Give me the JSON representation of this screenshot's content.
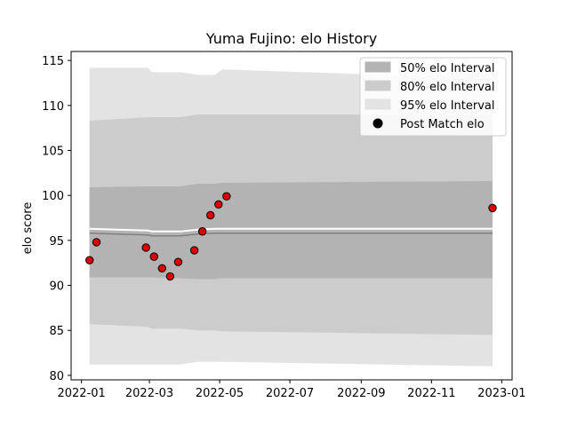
{
  "chart_data": {
    "type": "line",
    "title": "Yuma Fujino: elo History",
    "xlabel": "",
    "ylabel": "elo score",
    "xlim": [
      "2021-12-23",
      "2023-01-10"
    ],
    "ylim": [
      79.5,
      116
    ],
    "x_ticks": [
      "2022-01",
      "2022-03",
      "2022-05",
      "2022-07",
      "2022-09",
      "2022-11",
      "2023-01"
    ],
    "y_ticks": [
      80,
      85,
      90,
      95,
      100,
      105,
      110,
      115
    ],
    "grid": false,
    "legend_position": "upper right",
    "legend": [
      {
        "label": "50% elo Interval",
        "color": "#b3b3b3"
      },
      {
        "label": "80% elo Interval",
        "color": "#cccccc"
      },
      {
        "label": "95% elo Interval",
        "color": "#e3e3e3"
      },
      {
        "label": "Post Match elo",
        "color": "#000000"
      }
    ],
    "bands": {
      "dates": [
        "2022-01-08",
        "2022-02-28",
        "2022-03-03",
        "2022-03-28",
        "2022-04-12",
        "2022-04-27",
        "2022-05-03",
        "2022-12-24"
      ],
      "mean": [
        95.8,
        95.6,
        95.5,
        95.5,
        95.7,
        95.8,
        95.8,
        95.8
      ],
      "p50_low": [
        90.9,
        90.9,
        90.9,
        90.8,
        90.7,
        90.7,
        90.8,
        90.8
      ],
      "p50_high": [
        100.9,
        101.0,
        101.0,
        101.0,
        101.3,
        101.3,
        101.4,
        101.6
      ],
      "p80_low": [
        85.7,
        85.4,
        85.2,
        85.2,
        85.0,
        85.0,
        84.9,
        84.5
      ],
      "p80_high": [
        108.3,
        108.7,
        108.7,
        108.7,
        109.0,
        109.0,
        109.0,
        109.0
      ],
      "p95_low": [
        81.2,
        81.2,
        81.2,
        81.2,
        81.5,
        81.5,
        81.5,
        81.0
      ],
      "p95_high": [
        114.2,
        114.2,
        113.7,
        113.7,
        113.4,
        113.4,
        114.0,
        113.0
      ]
    },
    "points": [
      {
        "x": "2022-01-08",
        "y": 92.8
      },
      {
        "x": "2022-01-14",
        "y": 94.8
      },
      {
        "x": "2022-02-26",
        "y": 94.2
      },
      {
        "x": "2022-03-05",
        "y": 93.2
      },
      {
        "x": "2022-03-12",
        "y": 91.9
      },
      {
        "x": "2022-03-19",
        "y": 91.0
      },
      {
        "x": "2022-03-26",
        "y": 92.6
      },
      {
        "x": "2022-04-09",
        "y": 93.9
      },
      {
        "x": "2022-04-16",
        "y": 96.0
      },
      {
        "x": "2022-04-23",
        "y": 97.8
      },
      {
        "x": "2022-04-30",
        "y": 99.0
      },
      {
        "x": "2022-05-07",
        "y": 99.9
      },
      {
        "x": "2022-12-24",
        "y": 98.6
      }
    ],
    "colors": {
      "p50": "#b3b3b3",
      "p80": "#cccccc",
      "p95": "#e3e3e3",
      "mean_line": "#808080",
      "white_line": "#ffffff",
      "point_fill": "#dd0000",
      "point_stroke": "#000000"
    }
  }
}
